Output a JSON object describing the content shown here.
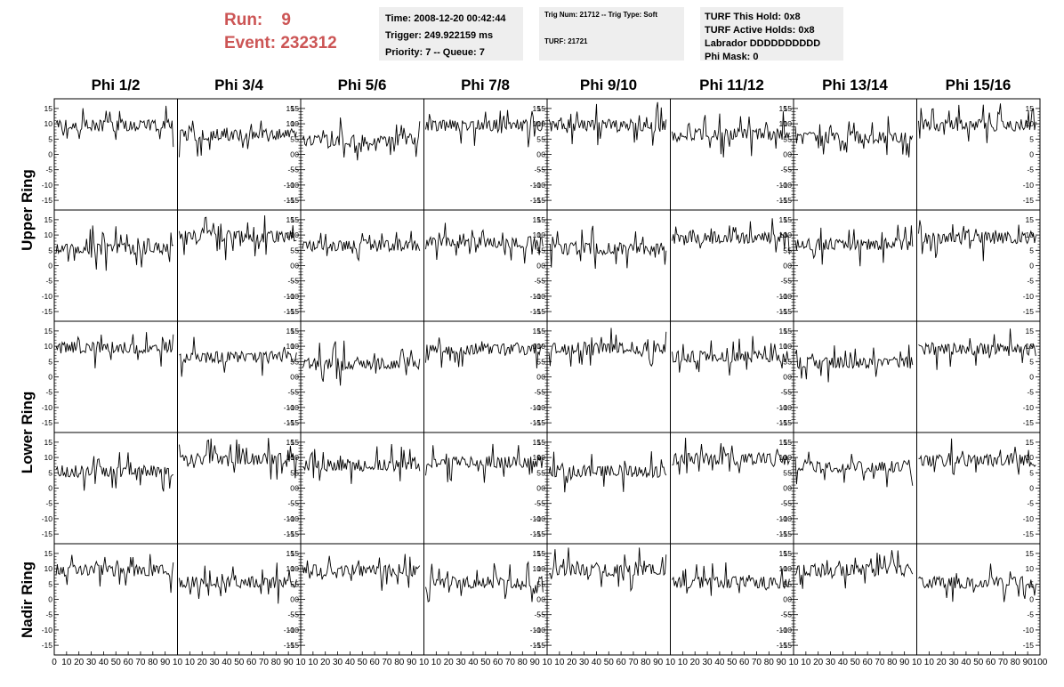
{
  "header": {
    "run_label": "Run:    9",
    "event_label": "Event: 232312",
    "time": "Time: 2008-12-20 00:42:44",
    "trigger": "Trigger: 249.922159 ms",
    "priority": "Priority: 7 -- Queue: 7",
    "trig_num": "Trig Num: 21712 -- Trig Type: Soft",
    "turf": "TURF: 21721",
    "turf_hold": "TURF This Hold: 0x8",
    "turf_active": "TURF Active Holds: 0x8",
    "labrador": "Labrador DDDDDDDDDD",
    "phi_mask": "Phi Mask: 0"
  },
  "columns": [
    "Phi 1/2",
    "Phi 3/4",
    "Phi 5/6",
    "Phi 7/8",
    "Phi 9/10",
    "Phi 11/12",
    "Phi 13/14",
    "Phi 15/16"
  ],
  "rings": [
    {
      "label": "Upper Ring"
    },
    {
      "label": "Lower Ring"
    },
    {
      "label": "Nadir Ring"
    }
  ],
  "chart_data": {
    "type": "line",
    "xlim": [
      0,
      100
    ],
    "ylim": [
      -17,
      17
    ],
    "yticks": [
      -15,
      -10,
      -5,
      0,
      5,
      10,
      15
    ],
    "xticks": [
      0,
      10,
      20,
      30,
      40,
      50,
      60,
      70,
      80,
      90,
      100
    ],
    "xtick_labels_panel": [
      "0",
      "10",
      "20",
      "30",
      "40",
      "50",
      "60",
      "70",
      "80",
      "90",
      "10"
    ],
    "xtick_labels_last": [
      "10",
      "20",
      "30",
      "40",
      "50",
      "60",
      "70",
      "80",
      "90",
      "100"
    ],
    "grid": false,
    "rows": 5,
    "cols": 8,
    "baseline_levels": [
      [
        9.5,
        6.5,
        4.5,
        9.5,
        9.5,
        6.5,
        5.5,
        9.5
      ],
      [
        5.5,
        9.5,
        6.5,
        7.5,
        5.5,
        9.0,
        7.0,
        9.0
      ],
      [
        9.5,
        6.5,
        4.5,
        9.0,
        9.5,
        6.5,
        4.5,
        9.0
      ],
      [
        5.5,
        9.5,
        7.5,
        8.5,
        5.5,
        9.5,
        7.0,
        9.0
      ],
      [
        9.5,
        5.5,
        9.5,
        5.5,
        9.5,
        5.5,
        9.5,
        5.5
      ]
    ]
  }
}
